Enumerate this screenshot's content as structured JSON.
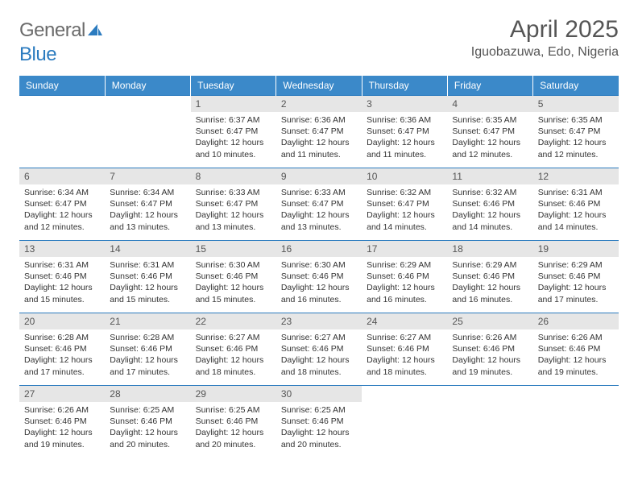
{
  "logo": {
    "text_general": "General",
    "text_blue": "Blue"
  },
  "title": "April 2025",
  "location": "Iguobazuwa, Edo, Nigeria",
  "colors": {
    "header_bg": "#3b89c9",
    "header_text": "#ffffff",
    "daynum_bg": "#e6e6e6",
    "border": "#2b7bbf",
    "logo_gray": "#6b6b6b",
    "logo_blue": "#2b7bbf"
  },
  "weekdays": [
    "Sunday",
    "Monday",
    "Tuesday",
    "Wednesday",
    "Thursday",
    "Friday",
    "Saturday"
  ],
  "weeks": [
    [
      {
        "empty": true
      },
      {
        "empty": true
      },
      {
        "day": "1",
        "sunrise": "Sunrise: 6:37 AM",
        "sunset": "Sunset: 6:47 PM",
        "daylight": "Daylight: 12 hours and 10 minutes."
      },
      {
        "day": "2",
        "sunrise": "Sunrise: 6:36 AM",
        "sunset": "Sunset: 6:47 PM",
        "daylight": "Daylight: 12 hours and 11 minutes."
      },
      {
        "day": "3",
        "sunrise": "Sunrise: 6:36 AM",
        "sunset": "Sunset: 6:47 PM",
        "daylight": "Daylight: 12 hours and 11 minutes."
      },
      {
        "day": "4",
        "sunrise": "Sunrise: 6:35 AM",
        "sunset": "Sunset: 6:47 PM",
        "daylight": "Daylight: 12 hours and 12 minutes."
      },
      {
        "day": "5",
        "sunrise": "Sunrise: 6:35 AM",
        "sunset": "Sunset: 6:47 PM",
        "daylight": "Daylight: 12 hours and 12 minutes."
      }
    ],
    [
      {
        "day": "6",
        "sunrise": "Sunrise: 6:34 AM",
        "sunset": "Sunset: 6:47 PM",
        "daylight": "Daylight: 12 hours and 12 minutes."
      },
      {
        "day": "7",
        "sunrise": "Sunrise: 6:34 AM",
        "sunset": "Sunset: 6:47 PM",
        "daylight": "Daylight: 12 hours and 13 minutes."
      },
      {
        "day": "8",
        "sunrise": "Sunrise: 6:33 AM",
        "sunset": "Sunset: 6:47 PM",
        "daylight": "Daylight: 12 hours and 13 minutes."
      },
      {
        "day": "9",
        "sunrise": "Sunrise: 6:33 AM",
        "sunset": "Sunset: 6:47 PM",
        "daylight": "Daylight: 12 hours and 13 minutes."
      },
      {
        "day": "10",
        "sunrise": "Sunrise: 6:32 AM",
        "sunset": "Sunset: 6:47 PM",
        "daylight": "Daylight: 12 hours and 14 minutes."
      },
      {
        "day": "11",
        "sunrise": "Sunrise: 6:32 AM",
        "sunset": "Sunset: 6:46 PM",
        "daylight": "Daylight: 12 hours and 14 minutes."
      },
      {
        "day": "12",
        "sunrise": "Sunrise: 6:31 AM",
        "sunset": "Sunset: 6:46 PM",
        "daylight": "Daylight: 12 hours and 14 minutes."
      }
    ],
    [
      {
        "day": "13",
        "sunrise": "Sunrise: 6:31 AM",
        "sunset": "Sunset: 6:46 PM",
        "daylight": "Daylight: 12 hours and 15 minutes."
      },
      {
        "day": "14",
        "sunrise": "Sunrise: 6:31 AM",
        "sunset": "Sunset: 6:46 PM",
        "daylight": "Daylight: 12 hours and 15 minutes."
      },
      {
        "day": "15",
        "sunrise": "Sunrise: 6:30 AM",
        "sunset": "Sunset: 6:46 PM",
        "daylight": "Daylight: 12 hours and 15 minutes."
      },
      {
        "day": "16",
        "sunrise": "Sunrise: 6:30 AM",
        "sunset": "Sunset: 6:46 PM",
        "daylight": "Daylight: 12 hours and 16 minutes."
      },
      {
        "day": "17",
        "sunrise": "Sunrise: 6:29 AM",
        "sunset": "Sunset: 6:46 PM",
        "daylight": "Daylight: 12 hours and 16 minutes."
      },
      {
        "day": "18",
        "sunrise": "Sunrise: 6:29 AM",
        "sunset": "Sunset: 6:46 PM",
        "daylight": "Daylight: 12 hours and 16 minutes."
      },
      {
        "day": "19",
        "sunrise": "Sunrise: 6:29 AM",
        "sunset": "Sunset: 6:46 PM",
        "daylight": "Daylight: 12 hours and 17 minutes."
      }
    ],
    [
      {
        "day": "20",
        "sunrise": "Sunrise: 6:28 AM",
        "sunset": "Sunset: 6:46 PM",
        "daylight": "Daylight: 12 hours and 17 minutes."
      },
      {
        "day": "21",
        "sunrise": "Sunrise: 6:28 AM",
        "sunset": "Sunset: 6:46 PM",
        "daylight": "Daylight: 12 hours and 17 minutes."
      },
      {
        "day": "22",
        "sunrise": "Sunrise: 6:27 AM",
        "sunset": "Sunset: 6:46 PM",
        "daylight": "Daylight: 12 hours and 18 minutes."
      },
      {
        "day": "23",
        "sunrise": "Sunrise: 6:27 AM",
        "sunset": "Sunset: 6:46 PM",
        "daylight": "Daylight: 12 hours and 18 minutes."
      },
      {
        "day": "24",
        "sunrise": "Sunrise: 6:27 AM",
        "sunset": "Sunset: 6:46 PM",
        "daylight": "Daylight: 12 hours and 18 minutes."
      },
      {
        "day": "25",
        "sunrise": "Sunrise: 6:26 AM",
        "sunset": "Sunset: 6:46 PM",
        "daylight": "Daylight: 12 hours and 19 minutes."
      },
      {
        "day": "26",
        "sunrise": "Sunrise: 6:26 AM",
        "sunset": "Sunset: 6:46 PM",
        "daylight": "Daylight: 12 hours and 19 minutes."
      }
    ],
    [
      {
        "day": "27",
        "sunrise": "Sunrise: 6:26 AM",
        "sunset": "Sunset: 6:46 PM",
        "daylight": "Daylight: 12 hours and 19 minutes."
      },
      {
        "day": "28",
        "sunrise": "Sunrise: 6:25 AM",
        "sunset": "Sunset: 6:46 PM",
        "daylight": "Daylight: 12 hours and 20 minutes."
      },
      {
        "day": "29",
        "sunrise": "Sunrise: 6:25 AM",
        "sunset": "Sunset: 6:46 PM",
        "daylight": "Daylight: 12 hours and 20 minutes."
      },
      {
        "day": "30",
        "sunrise": "Sunrise: 6:25 AM",
        "sunset": "Sunset: 6:46 PM",
        "daylight": "Daylight: 12 hours and 20 minutes."
      },
      {
        "empty": true
      },
      {
        "empty": true
      },
      {
        "empty": true
      }
    ]
  ]
}
